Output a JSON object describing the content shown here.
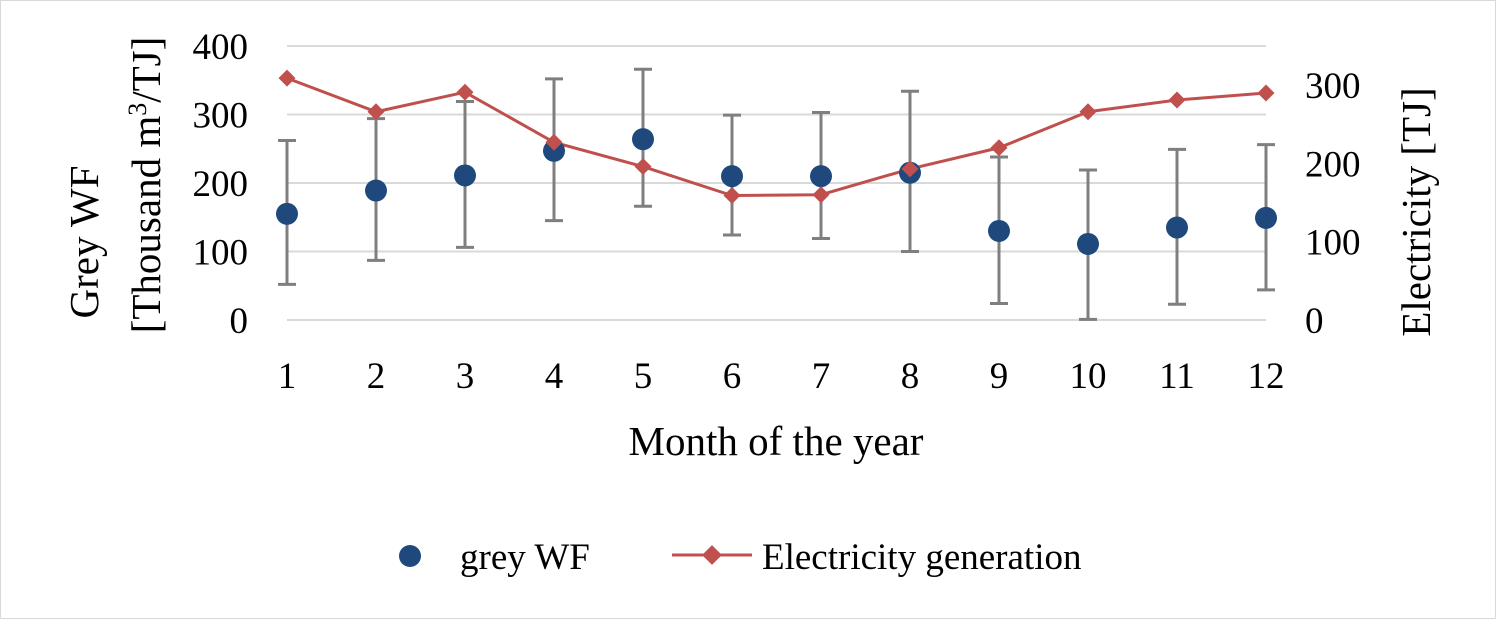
{
  "chart_data": {
    "type": "scatter",
    "xlabel": "Month of the year",
    "ylabel_left_line1": "Grey WF",
    "ylabel_left_line2_pre": "[Thousand m",
    "ylabel_left_sup": "3",
    "ylabel_left_line2_post": "/TJ]",
    "ylabel_right": "Electricity [TJ]",
    "x": [
      1,
      2,
      3,
      4,
      5,
      6,
      7,
      8,
      9,
      10,
      11,
      12
    ],
    "ylim_left": [
      0,
      400
    ],
    "yticks_left": [
      0,
      100,
      200,
      300,
      400
    ],
    "ylim_right": [
      0,
      350
    ],
    "yticks_right": [
      0,
      100,
      200,
      300
    ],
    "grid": true,
    "legend_position": "bottom",
    "series": [
      {
        "name": "grey WF",
        "axis": "left",
        "marker": "circle",
        "color": "#1f497d",
        "values": [
          155,
          189,
          211,
          247,
          264,
          210,
          210,
          215,
          130,
          111,
          135,
          149
        ],
        "error_low": [
          52,
          87,
          106,
          145,
          166,
          124,
          119,
          100,
          24,
          1,
          23,
          44
        ],
        "error_high": [
          262,
          294,
          319,
          352,
          366,
          299,
          303,
          334,
          238,
          219,
          249,
          256
        ]
      },
      {
        "name": "Electricity generation",
        "axis": "right",
        "marker": "diamond",
        "color": "#c0504d",
        "values": [
          309,
          266,
          291,
          227,
          196,
          159,
          160,
          193,
          220,
          266,
          281,
          290
        ]
      }
    ]
  }
}
